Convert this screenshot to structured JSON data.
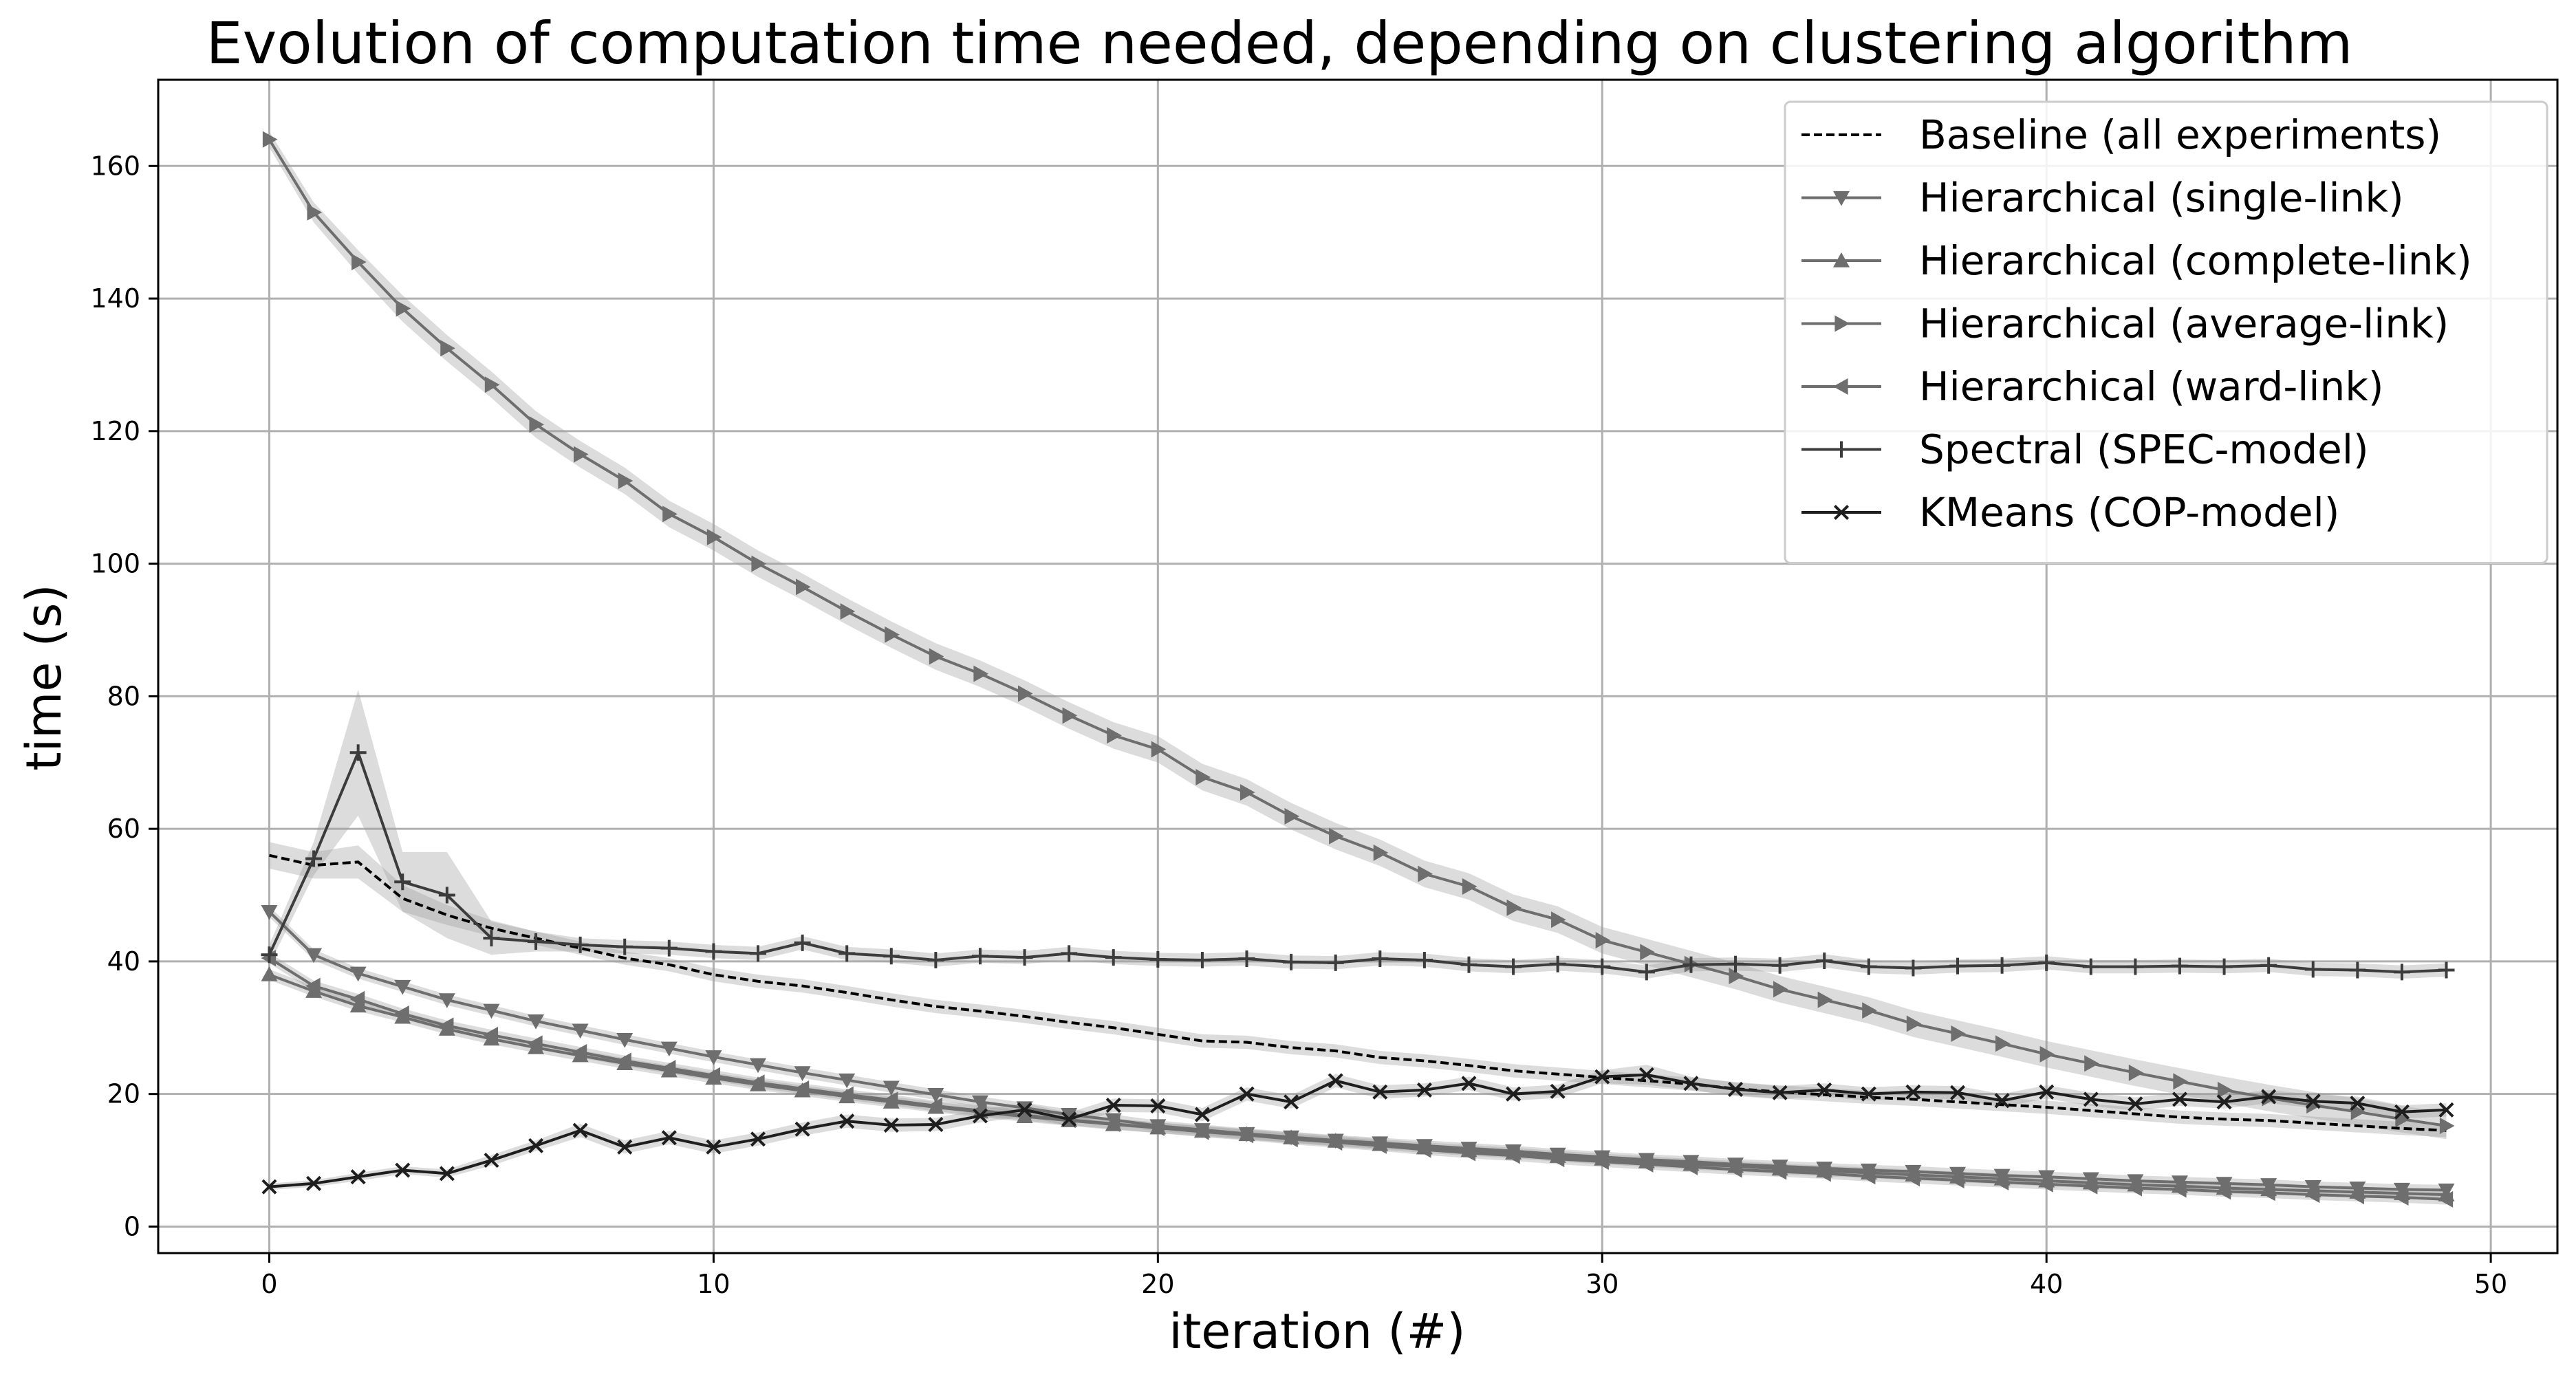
{
  "chart_data": {
    "type": "line",
    "title": "Evolution of computation time needed, depending on clustering algorithm",
    "xlabel": "iteration (#)",
    "ylabel": "time (s)",
    "xlim": [
      -2.5,
      51.5
    ],
    "ylim": [
      -4,
      173
    ],
    "x_ticks": [
      0,
      10,
      20,
      30,
      40,
      50
    ],
    "y_ticks": [
      0,
      20,
      40,
      60,
      80,
      100,
      120,
      140,
      160
    ],
    "grid": true,
    "legend_position": "top-right",
    "confidence_band": true,
    "x": [
      0,
      1,
      2,
      3,
      4,
      5,
      6,
      7,
      8,
      9,
      10,
      11,
      12,
      13,
      14,
      15,
      16,
      17,
      18,
      19,
      20,
      21,
      22,
      23,
      24,
      25,
      26,
      27,
      28,
      29,
      30,
      31,
      32,
      33,
      34,
      35,
      36,
      37,
      38,
      39,
      40,
      41,
      42,
      43,
      44,
      45,
      46,
      47,
      48,
      49
    ],
    "series": [
      {
        "name": "Baseline (all experiments)",
        "marker": "none",
        "line_style": "dashed",
        "color": "#000000",
        "values": [
          56,
          54.5,
          55,
          49.5,
          47,
          45,
          43.5,
          42,
          40.5,
          39.5,
          38,
          37,
          36.3,
          35.3,
          34.2,
          33.2,
          32.5,
          31.7,
          30.8,
          30,
          29,
          28,
          27.8,
          27,
          26.5,
          25.5,
          25,
          24.3,
          23.5,
          23,
          22.5,
          22,
          21.5,
          20.8,
          20.3,
          19.9,
          19.5,
          19.2,
          18.8,
          18.4,
          18,
          17.5,
          17,
          16.5,
          16.2,
          16,
          15.6,
          15.2,
          14.8,
          14.5
        ],
        "band": [
          2,
          2,
          2.5,
          2,
          1.5,
          1.2,
          1,
          1,
          1,
          1,
          1,
          1,
          1,
          1,
          1,
          1,
          1,
          1,
          1,
          1,
          1,
          1,
          1,
          1,
          1,
          1,
          1,
          1,
          1,
          1,
          1,
          1,
          1,
          1,
          1,
          1,
          1,
          1,
          1,
          1,
          1,
          1,
          1,
          1,
          1,
          1,
          1,
          1,
          1,
          1
        ]
      },
      {
        "name": "Hierarchical (single-link)",
        "marker": "triangle-down",
        "line_style": "solid",
        "color": "#6e6e6e",
        "values": [
          47.5,
          41,
          38.2,
          36.2,
          34.2,
          32.6,
          31,
          29.6,
          28.2,
          26.9,
          25.6,
          24.4,
          23.2,
          22.1,
          21,
          19.9,
          18.8,
          17.9,
          16.9,
          16.1,
          15.2,
          14.6,
          14,
          13.5,
          13,
          12.6,
          12.2,
          11.8,
          11.4,
          10.9,
          10.5,
          10.1,
          9.8,
          9.4,
          9.1,
          8.8,
          8.5,
          8.3,
          8,
          7.7,
          7.5,
          7.2,
          6.9,
          6.7,
          6.5,
          6.3,
          6,
          5.8,
          5.6,
          5.5
        ],
        "band": [
          0.8,
          0.8,
          0.8,
          0.8,
          0.8,
          0.8,
          0.8,
          0.8,
          0.8,
          0.8,
          0.8,
          0.8,
          0.8,
          0.8,
          0.8,
          0.8,
          0.8,
          0.8,
          0.8,
          0.8,
          0.8,
          0.8,
          0.8,
          0.8,
          0.8,
          0.8,
          0.8,
          0.8,
          0.8,
          0.8,
          0.8,
          0.8,
          0.8,
          0.8,
          0.8,
          0.8,
          0.8,
          0.8,
          0.8,
          0.8,
          0.8,
          0.8,
          0.8,
          0.8,
          0.8,
          0.8,
          0.8,
          0.8,
          0.8,
          0.8
        ]
      },
      {
        "name": "Hierarchical (complete-link)",
        "marker": "triangle-up",
        "line_style": "solid",
        "color": "#6e6e6e",
        "values": [
          38,
          35.5,
          33.3,
          31.6,
          29.8,
          28.3,
          27,
          25.8,
          24.6,
          23.5,
          22.4,
          21.4,
          20.5,
          19.6,
          18.8,
          18,
          17.3,
          16.6,
          16,
          15.4,
          14.9,
          14.4,
          13.9,
          13.4,
          12.9,
          12.4,
          11.9,
          11.5,
          11.1,
          10.6,
          10.2,
          9.8,
          9.4,
          9.1,
          8.7,
          8.4,
          8.1,
          7.8,
          7.5,
          7.2,
          6.9,
          6.6,
          6.3,
          6.1,
          5.8,
          5.6,
          5.4,
          5.2,
          5,
          4.8
        ],
        "band": [
          0.8,
          0.8,
          0.8,
          0.8,
          0.8,
          0.8,
          0.8,
          0.8,
          0.8,
          0.8,
          0.8,
          0.8,
          0.8,
          0.8,
          0.8,
          0.8,
          0.8,
          0.8,
          0.8,
          0.8,
          0.8,
          0.8,
          0.8,
          0.8,
          0.8,
          0.8,
          0.8,
          0.8,
          0.8,
          0.8,
          0.8,
          0.8,
          0.8,
          0.8,
          0.8,
          0.8,
          0.8,
          0.8,
          0.8,
          0.8,
          0.8,
          0.8,
          0.8,
          0.8,
          0.8,
          0.8,
          0.8,
          0.8,
          0.8,
          0.8
        ]
      },
      {
        "name": "Hierarchical (average-link)",
        "marker": "triangle-right",
        "line_style": "solid",
        "color": "#6e6e6e",
        "values": [
          164,
          153,
          145.5,
          138.5,
          132.5,
          127,
          121,
          116.5,
          112.5,
          107.5,
          104,
          100,
          96.5,
          92.8,
          89.3,
          86,
          83.4,
          80.4,
          77.1,
          74.1,
          72,
          67.8,
          65.5,
          61.9,
          58.9,
          56.4,
          53.2,
          51.3,
          48.1,
          46.3,
          43.2,
          41.4,
          39.6,
          37.8,
          35.8,
          34.2,
          32.6,
          30.6,
          29.1,
          27.6,
          26,
          24.6,
          23.2,
          21.9,
          20.6,
          19.4,
          18.3,
          17.3,
          16.2,
          15.2
        ],
        "band": [
          1.2,
          1.5,
          1.8,
          2,
          2,
          2,
          2,
          2,
          2,
          2,
          2,
          2,
          2,
          2,
          2,
          2,
          2,
          2,
          2,
          2,
          2,
          2,
          2,
          2,
          2,
          2,
          2,
          2,
          2,
          2,
          2,
          2,
          2,
          2,
          2,
          2,
          2,
          2,
          2,
          2,
          2,
          2,
          2,
          2,
          2,
          2,
          2,
          2,
          2,
          2
        ]
      },
      {
        "name": "Hierarchical (ward-link)",
        "marker": "triangle-left",
        "line_style": "solid",
        "color": "#6e6e6e",
        "values": [
          40.5,
          36.3,
          34.3,
          32.1,
          30.3,
          28.9,
          27.6,
          26.3,
          25,
          23.9,
          22.8,
          21.7,
          20.8,
          19.9,
          19.1,
          18.2,
          17.5,
          16.8,
          16.1,
          15.5,
          14.9,
          14.3,
          13.8,
          13.2,
          12.7,
          12.2,
          11.6,
          11.1,
          10.7,
          10.2,
          9.8,
          9.4,
          9,
          8.6,
          8.3,
          8,
          7.6,
          7.3,
          7,
          6.7,
          6.4,
          6.1,
          5.8,
          5.6,
          5.3,
          5.1,
          4.8,
          4.6,
          4.4,
          4.1
        ],
        "band": [
          0.8,
          0.8,
          0.8,
          0.8,
          0.8,
          0.8,
          0.8,
          0.8,
          0.8,
          0.8,
          0.8,
          0.8,
          0.8,
          0.8,
          0.8,
          0.8,
          0.8,
          0.8,
          0.8,
          0.8,
          0.8,
          0.8,
          0.8,
          0.8,
          0.8,
          0.8,
          0.8,
          0.8,
          0.8,
          0.8,
          0.8,
          0.8,
          0.8,
          0.8,
          0.8,
          0.8,
          0.8,
          0.8,
          0.8,
          0.8,
          0.8,
          0.8,
          0.8,
          0.8,
          0.8,
          0.8,
          0.8,
          0.8,
          0.8,
          0.8
        ]
      },
      {
        "name": "Spectral (SPEC-model)",
        "marker": "plus",
        "line_style": "solid",
        "color": "#3c3c3c",
        "values": [
          41,
          55.5,
          71.5,
          52,
          50,
          43.5,
          43,
          42.5,
          42.2,
          42,
          41.5,
          41.2,
          42.8,
          41.2,
          40.8,
          40.2,
          40.8,
          40.6,
          41.2,
          40.6,
          40.3,
          40.2,
          40.4,
          39.9,
          39.8,
          40.4,
          40.2,
          39.5,
          39.2,
          39.6,
          39.2,
          38.4,
          39.5,
          39.6,
          39.4,
          40.1,
          39.2,
          39,
          39.3,
          39.4,
          39.8,
          39.2,
          39.2,
          39.3,
          39.2,
          39.4,
          38.8,
          38.7,
          38.4,
          38.7
        ],
        "band": [
          1.5,
          2.5,
          9.5,
          4.5,
          6.5,
          2.5,
          1.5,
          1,
          1,
          1,
          1,
          1,
          1,
          1,
          1,
          1,
          1,
          1,
          1,
          1,
          1,
          1,
          1,
          1,
          1,
          1,
          1,
          1,
          1,
          1,
          1,
          1,
          1,
          1,
          1,
          1,
          1,
          1,
          1,
          1,
          1,
          1,
          1,
          1,
          1,
          1,
          1,
          1,
          1,
          1
        ]
      },
      {
        "name": "KMeans (COP-model)",
        "marker": "x",
        "line_style": "solid",
        "color": "#1e1e1e",
        "values": [
          6,
          6.5,
          7.5,
          8.5,
          8,
          10,
          12.2,
          14.5,
          12,
          13.4,
          12,
          13.2,
          14.7,
          15.9,
          15.3,
          15.4,
          16.7,
          17.6,
          16.2,
          18.3,
          18.2,
          16.9,
          20,
          18.8,
          22,
          20.3,
          20.6,
          21.6,
          20,
          20.4,
          22.6,
          22.9,
          21.6,
          20.7,
          20.2,
          20.6,
          20,
          20.3,
          20.2,
          19,
          20.3,
          19.2,
          18.5,
          19.2,
          18.8,
          19.6,
          18.9,
          18.6,
          17.3,
          17.6
        ],
        "band": [
          0.5,
          0.5,
          0.6,
          0.6,
          0.6,
          0.8,
          0.8,
          1,
          1,
          1,
          1,
          1,
          1,
          1,
          1,
          1,
          1,
          1,
          1,
          1,
          1,
          1,
          1,
          1,
          1,
          1,
          1,
          1,
          1,
          1,
          1,
          1.5,
          1,
          1,
          1,
          1,
          1,
          1,
          1,
          1,
          1,
          1,
          1,
          1,
          1,
          1,
          1,
          1,
          1,
          1
        ]
      }
    ]
  }
}
